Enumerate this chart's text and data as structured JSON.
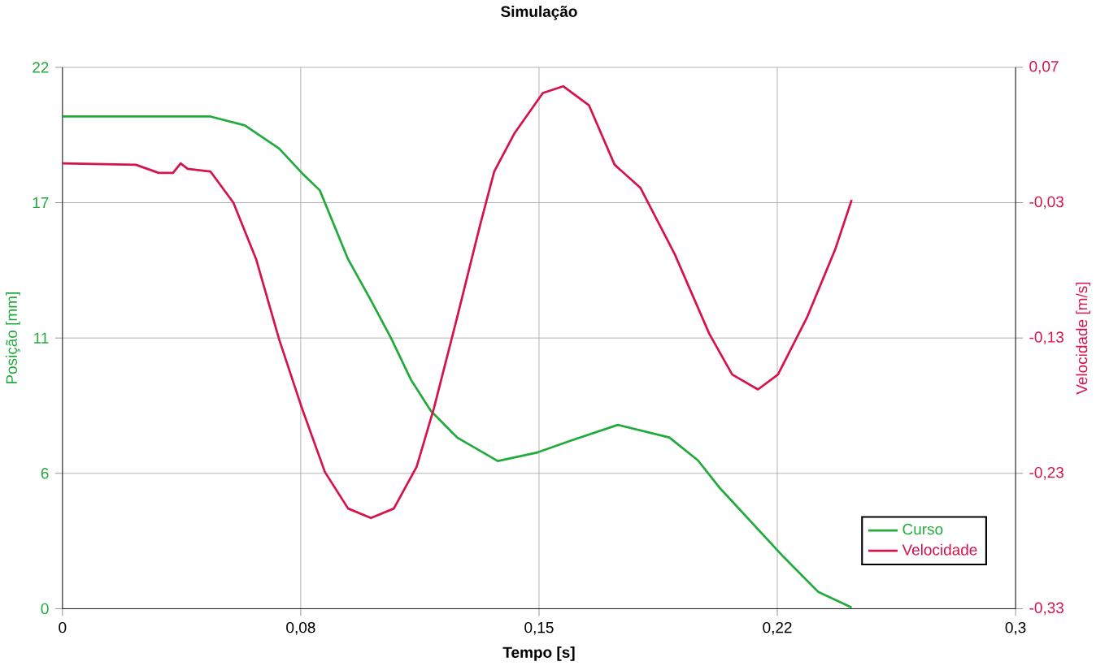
{
  "chart_data": {
    "type": "line",
    "title": "Simulação",
    "xlabel": "Tempo [s]",
    "ylabel": "Posição [mm]",
    "y2label": "Velocidade [m/s]",
    "xlim": [
      0,
      0.3
    ],
    "xticks": [
      {
        "value": 0,
        "label": "0"
      },
      {
        "value": 0.075,
        "label": "0,08"
      },
      {
        "value": 0.15,
        "label": "0,15"
      },
      {
        "value": 0.225,
        "label": "0,22"
      },
      {
        "value": 0.3,
        "label": "0,3"
      }
    ],
    "ylim": [
      0,
      22
    ],
    "yticks": [
      {
        "value": 0,
        "label": "0"
      },
      {
        "value": 5.5,
        "label": "6"
      },
      {
        "value": 11,
        "label": "11"
      },
      {
        "value": 16.5,
        "label": "17"
      },
      {
        "value": 22,
        "label": "22"
      }
    ],
    "y2lim": [
      -0.33,
      0.07
    ],
    "y2ticks": [
      {
        "value": -0.33,
        "label": "-0,33"
      },
      {
        "value": -0.23,
        "label": "-0,23"
      },
      {
        "value": -0.13,
        "label": "-0,13"
      },
      {
        "value": -0.03,
        "label": "-0,03"
      },
      {
        "value": 0.07,
        "label": "0,07"
      }
    ],
    "grid": true,
    "legend": "bottom right",
    "line_style": "solid",
    "series": [
      {
        "name": "Curso",
        "color": "#22aa3c",
        "x": [
          0,
          0.0466,
          0.0574,
          0.0682,
          0.0754,
          0.081,
          0.0899,
          0.097,
          0.1034,
          0.1097,
          0.116,
          0.1242,
          0.137,
          0.1495,
          0.1602,
          0.1748,
          0.191,
          0.2,
          0.207,
          0.227,
          0.2379,
          0.2484
        ],
        "values": [
          20.0,
          20.0,
          19.64,
          18.7,
          17.7,
          17.0,
          14.2,
          12.55,
          11.0,
          9.3,
          8.03,
          6.96,
          6.0,
          6.35,
          6.84,
          7.47,
          6.96,
          6.03,
          4.89,
          2.1,
          0.68,
          0.05
        ]
      },
      {
        "name": "Velocidade",
        "color": "#d4144a",
        "axis": "y2",
        "x": [
          0,
          0.0231,
          0.0303,
          0.0348,
          0.0372,
          0.0394,
          0.0466,
          0.0538,
          0.061,
          0.0682,
          0.0754,
          0.0826,
          0.0899,
          0.0971,
          0.1043,
          0.1115,
          0.1169,
          0.1242,
          0.1314,
          0.1359,
          0.1422,
          0.1512,
          0.1576,
          0.1657,
          0.1738,
          0.1819,
          0.1927,
          0.2036,
          0.2108,
          0.2189,
          0.2252,
          0.2343,
          0.2433,
          0.2484
        ],
        "values": [
          -0.001,
          -0.002,
          -0.008,
          -0.008,
          -0.001,
          -0.005,
          -0.007,
          -0.03,
          -0.072,
          -0.131,
          -0.182,
          -0.229,
          -0.256,
          -0.263,
          -0.256,
          -0.225,
          -0.182,
          -0.115,
          -0.047,
          -0.007,
          0.021,
          0.051,
          0.056,
          0.042,
          -0.002,
          -0.019,
          -0.068,
          -0.127,
          -0.157,
          -0.168,
          -0.157,
          -0.115,
          -0.064,
          -0.028
        ]
      }
    ]
  }
}
